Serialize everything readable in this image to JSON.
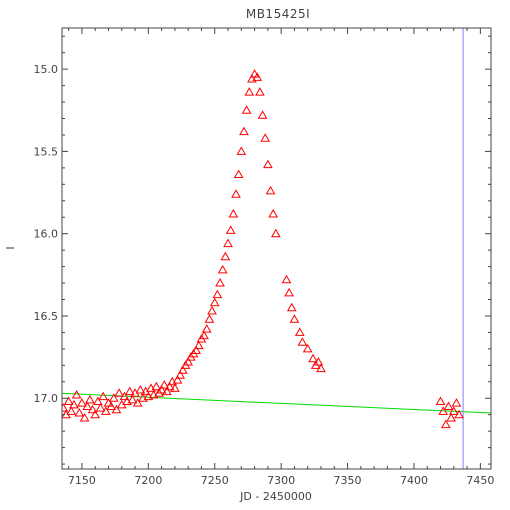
{
  "chart_data": {
    "type": "scatter",
    "title": "MB15425I",
    "xlabel": "JD - 2450000",
    "ylabel": "I",
    "xlim": [
      7135,
      7458
    ],
    "ylim": [
      17.43,
      14.75
    ],
    "y_inverted": true,
    "x_ticks": [
      7150,
      7200,
      7250,
      7300,
      7350,
      7400,
      7450
    ],
    "y_ticks": [
      15.0,
      15.5,
      16.0,
      16.5,
      17.0
    ],
    "x_tick_labels": [
      "7150",
      "7200",
      "7250",
      "7300",
      "7350",
      "7400",
      "7450"
    ],
    "y_tick_labels": [
      "15.0",
      "15.5",
      "16.0",
      "16.5",
      "17.0"
    ],
    "grid": false,
    "colors": {
      "observations": "#ff0000",
      "baseline_line": "#00dd00",
      "current_date_line": "#8080ff",
      "axes": "#444444"
    },
    "series": [
      {
        "marker": "triangle-open",
        "color": "#ff0000",
        "points": [
          [
            7136,
            17.06
          ],
          [
            7138,
            17.1
          ],
          [
            7140,
            17.02
          ],
          [
            7142,
            17.08
          ],
          [
            7144,
            17.04
          ],
          [
            7146,
            16.98
          ],
          [
            7148,
            17.09
          ],
          [
            7150,
            17.03
          ],
          [
            7152,
            17.12
          ],
          [
            7154,
            17.05
          ],
          [
            7156,
            17.01
          ],
          [
            7158,
            17.07
          ],
          [
            7160,
            17.1
          ],
          [
            7162,
            17.02
          ],
          [
            7164,
            17.06
          ],
          [
            7166,
            16.99
          ],
          [
            7168,
            17.08
          ],
          [
            7170,
            17.03
          ],
          [
            7172,
            17.05
          ],
          [
            7174,
            17.0
          ],
          [
            7176,
            17.07
          ],
          [
            7178,
            16.97
          ],
          [
            7180,
            17.04
          ],
          [
            7182,
            16.99
          ],
          [
            7184,
            17.02
          ],
          [
            7186,
            16.96
          ],
          [
            7188,
            17.01
          ],
          [
            7190,
            16.97
          ],
          [
            7192,
            17.03
          ],
          [
            7194,
            16.95
          ],
          [
            7196,
            17.0
          ],
          [
            7198,
            16.96
          ],
          [
            7200,
            16.99
          ],
          [
            7202,
            16.94
          ],
          [
            7204,
            16.98
          ],
          [
            7206,
            16.93
          ],
          [
            7208,
            16.97
          ],
          [
            7210,
            16.95
          ],
          [
            7212,
            16.92
          ],
          [
            7214,
            16.96
          ],
          [
            7216,
            16.93
          ],
          [
            7218,
            16.9
          ],
          [
            7220,
            16.94
          ],
          [
            7222,
            16.89
          ],
          [
            7224,
            16.86
          ],
          [
            7226,
            16.83
          ],
          [
            7228,
            16.8
          ],
          [
            7230,
            16.78
          ],
          [
            7232,
            16.75
          ],
          [
            7234,
            16.73
          ],
          [
            7236,
            16.71
          ],
          [
            7238,
            16.68
          ],
          [
            7240,
            16.64
          ],
          [
            7242,
            16.62
          ],
          [
            7244,
            16.58
          ],
          [
            7246,
            16.52
          ],
          [
            7248,
            16.47
          ],
          [
            7250,
            16.42
          ],
          [
            7252,
            16.37
          ],
          [
            7254,
            16.3
          ],
          [
            7256,
            16.22
          ],
          [
            7258,
            16.14
          ],
          [
            7260,
            16.06
          ],
          [
            7262,
            15.98
          ],
          [
            7264,
            15.88
          ],
          [
            7266,
            15.76
          ],
          [
            7268,
            15.64
          ],
          [
            7270,
            15.5
          ],
          [
            7272,
            15.38
          ],
          [
            7274,
            15.25
          ],
          [
            7276,
            15.14
          ],
          [
            7278,
            15.06
          ],
          [
            7280,
            15.03
          ],
          [
            7282,
            15.05
          ],
          [
            7284,
            15.14
          ],
          [
            7286,
            15.28
          ],
          [
            7288,
            15.42
          ],
          [
            7290,
            15.58
          ],
          [
            7292,
            15.74
          ],
          [
            7294,
            15.88
          ],
          [
            7296,
            16.0
          ],
          [
            7304,
            16.28
          ],
          [
            7306,
            16.36
          ],
          [
            7308,
            16.45
          ],
          [
            7310,
            16.52
          ],
          [
            7314,
            16.6
          ],
          [
            7316,
            16.66
          ],
          [
            7320,
            16.7
          ],
          [
            7324,
            16.76
          ],
          [
            7326,
            16.8
          ],
          [
            7328,
            16.78
          ],
          [
            7330,
            16.82
          ],
          [
            7420,
            17.02
          ],
          [
            7422,
            17.08
          ],
          [
            7424,
            17.16
          ],
          [
            7426,
            17.05
          ],
          [
            7428,
            17.12
          ],
          [
            7430,
            17.08
          ],
          [
            7432,
            17.03
          ],
          [
            7434,
            17.1
          ]
        ]
      }
    ],
    "baseline_line": {
      "x": [
        7135,
        7458
      ],
      "y": [
        16.97,
        17.09
      ]
    },
    "current_date_line": {
      "x": 7437
    }
  }
}
